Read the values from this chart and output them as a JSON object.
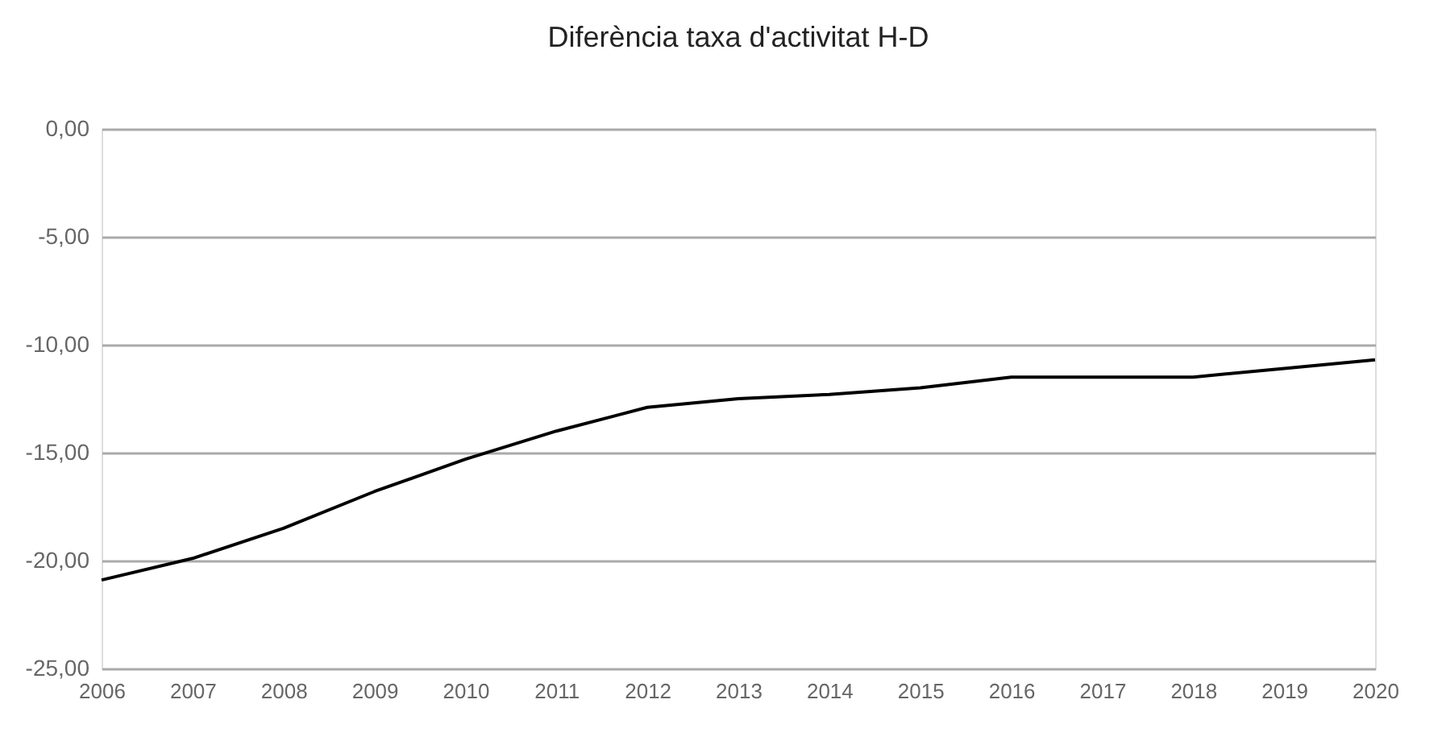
{
  "chart_data": {
    "type": "line",
    "title": "Diferència taxa d'activitat H-D",
    "categories": [
      "2006",
      "2007",
      "2008",
      "2009",
      "2010",
      "2011",
      "2012",
      "2013",
      "2014",
      "2015",
      "2016",
      "2017",
      "2018",
      "2019",
      "2020"
    ],
    "series": [
      {
        "color": "#000000",
        "values": [
          -20.9,
          -19.9,
          -18.5,
          -16.8,
          -15.3,
          -14.0,
          -12.9,
          -12.5,
          -12.3,
          -12.0,
          -11.5,
          -11.5,
          -11.5,
          -11.1,
          -10.7
        ]
      }
    ],
    "ylim": [
      -25,
      0
    ],
    "yticks": [
      {
        "value": 0,
        "label": "0,00"
      },
      {
        "value": -5,
        "label": "-5,00"
      },
      {
        "value": -10,
        "label": "-10,00"
      },
      {
        "value": -15,
        "label": "-15,00"
      },
      {
        "value": -20,
        "label": "-20,00"
      },
      {
        "value": -25,
        "label": "-25,00"
      }
    ],
    "grid": "y",
    "marker": "none",
    "line_style": "solid"
  }
}
